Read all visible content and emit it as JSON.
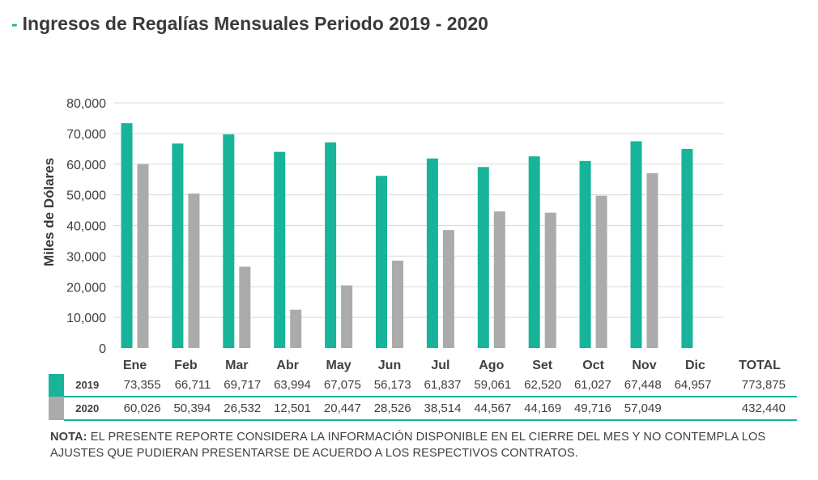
{
  "title": "Ingresos de Regalías Mensuales Periodo 2019 - 2020",
  "title_dash": "-",
  "colors": {
    "s2019": "#17b49a",
    "s2020": "#ababab",
    "grid": "#d9d9d9",
    "accent": "#17b49a"
  },
  "chart_data": {
    "type": "bar",
    "title": "Ingresos de Regalías Mensuales Periodo 2019 - 2020",
    "xlabel": "",
    "ylabel": "Miles de Dólares",
    "ylim": [
      0,
      80000
    ],
    "yticks": [
      "0",
      "10,000",
      "20,000",
      "30,000",
      "40,000",
      "50,000",
      "60,000",
      "70,000",
      "80,000"
    ],
    "ytick_values": [
      0,
      10000,
      20000,
      30000,
      40000,
      50000,
      60000,
      70000,
      80000
    ],
    "grid": true,
    "categories": [
      "Ene",
      "Feb",
      "Mar",
      "Abr",
      "May",
      "Jun",
      "Jul",
      "Ago",
      "Set",
      "Oct",
      "Nov",
      "Dic"
    ],
    "series": [
      {
        "name": "2019",
        "values": [
          73355,
          66711,
          69717,
          63994,
          67075,
          56173,
          61837,
          59061,
          62520,
          61027,
          67448,
          64957
        ]
      },
      {
        "name": "2020",
        "values": [
          60026,
          50394,
          26532,
          12501,
          20447,
          28526,
          38514,
          44567,
          44169,
          49716,
          57049,
          null
        ]
      }
    ]
  },
  "table": {
    "total_header": "TOTAL",
    "rows": [
      {
        "year": "2019",
        "values": [
          "73,355",
          "66,711",
          "69,717",
          "63,994",
          "67,075",
          "56,173",
          "61,837",
          "59,061",
          "62,520",
          "61,027",
          "67,448",
          "64,957"
        ],
        "total": "773,875"
      },
      {
        "year": "2020",
        "values": [
          "60,026",
          "50,394",
          "26,532",
          "12,501",
          "20,447",
          "28,526",
          "38,514",
          "44,567",
          "44,169",
          "49,716",
          "57,049",
          ""
        ],
        "total": "432,440"
      }
    ]
  },
  "note": {
    "label": "NOTA:",
    "text": " EL PRESENTE REPORTE CONSIDERA LA INFORMACIÓN DISPONIBLE EN EL CIERRE DEL MES Y NO CONTEMPLA LOS AJUSTES QUE PUDIERAN PRESENTARSE DE ACUERDO A LOS RESPECTIVOS CONTRATOS."
  }
}
